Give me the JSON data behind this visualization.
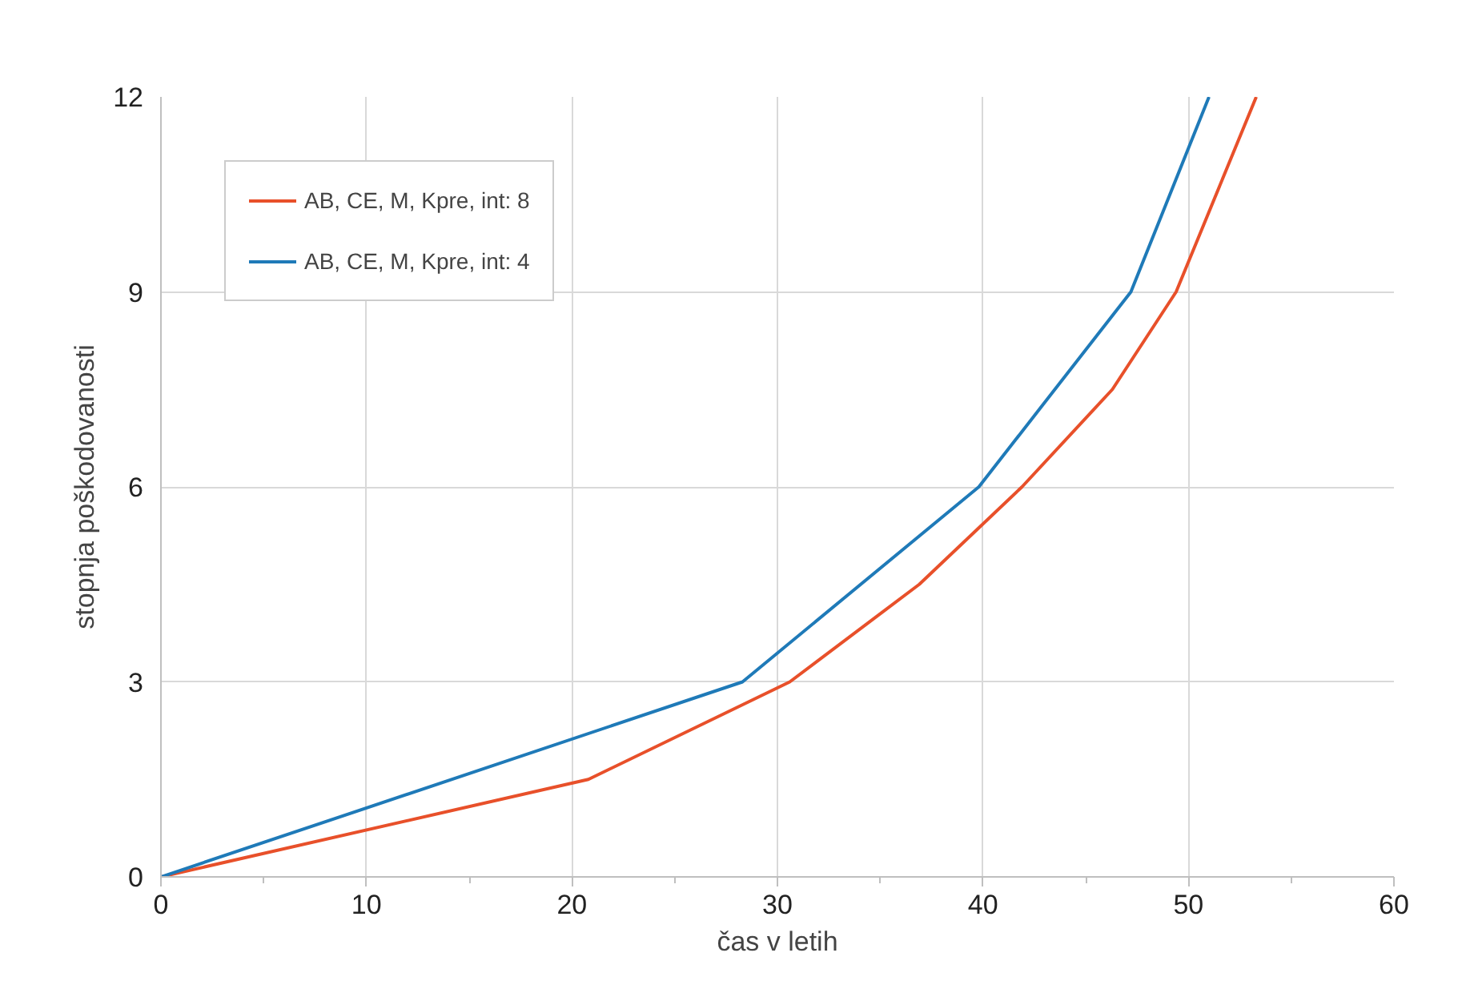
{
  "chart_data": {
    "type": "line",
    "xlabel": "čas v letih",
    "ylabel": "stopnja poškodovanosti",
    "xlim": [
      0,
      60
    ],
    "ylim": [
      0,
      12
    ],
    "xticks": [
      0,
      10,
      20,
      30,
      40,
      50,
      60
    ],
    "yticks": [
      0,
      3,
      6,
      9,
      12
    ],
    "grid": true,
    "legend": "top left",
    "series": [
      {
        "name": "AB, CE, M, Kpre, int: 8",
        "color": "#e8502a",
        "x": [
          0,
          20.8,
          30.6,
          36.9,
          41.9,
          46.3,
          49.4,
          53.3
        ],
        "values": [
          0,
          1.5,
          3.0,
          4.5,
          6.0,
          7.5,
          9.0,
          12
        ]
      },
      {
        "name": "AB, CE, M, Kpre, int: 4",
        "color": "#1f7ab8",
        "x": [
          0,
          28.3,
          39.8,
          47.2,
          51.0
        ],
        "values": [
          0,
          3.0,
          6.0,
          9.0,
          12
        ]
      }
    ]
  }
}
